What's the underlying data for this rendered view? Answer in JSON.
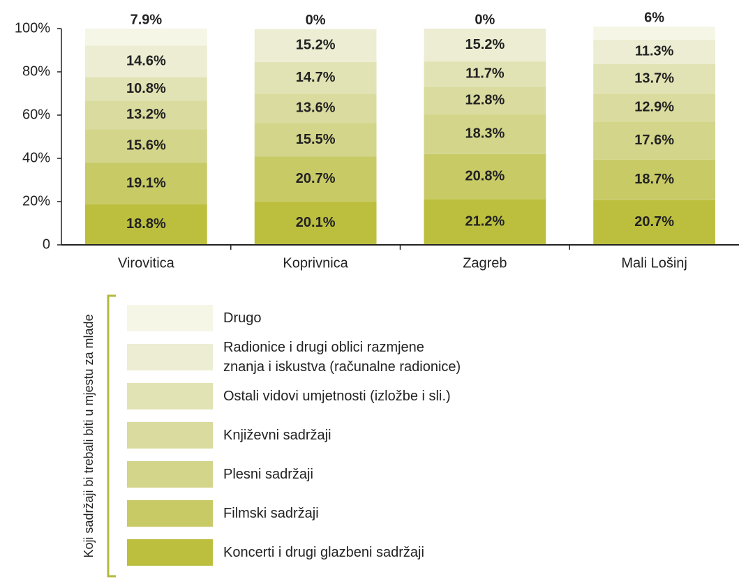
{
  "chart_data": {
    "type": "stacked_bar",
    "legend_title": "Koji sadržaji bi trebali biti u mjestu za mlade",
    "categories": [
      "Virovitica",
      "Koprivnica",
      "Zagreb",
      "Mali Lošinj"
    ],
    "ylim": [
      0,
      100
    ],
    "yticks": [
      0,
      {
        "value": 20,
        "label": "20%"
      },
      {
        "value": 40,
        "label": "40%"
      },
      {
        "value": 60,
        "label": "60%"
      },
      {
        "value": 80,
        "label": "80%"
      },
      {
        "value": 100,
        "label": "100%"
      }
    ],
    "series": [
      {
        "name": "Koncerti i drugi glazbeni sadržaji",
        "color": "#bcbf3e",
        "values": [
          18.8,
          20.1,
          21.2,
          20.7
        ],
        "value_labels": [
          "18.8%",
          "20.1%",
          "21.2%",
          "20.7%"
        ]
      },
      {
        "name": "Filmski sadržaji",
        "color": "#c8ca66",
        "values": [
          19.1,
          20.7,
          20.8,
          18.7
        ],
        "value_labels": [
          "19.1%",
          "20.7%",
          "20.8%",
          "18.7%"
        ]
      },
      {
        "name": "Plesni sadržaji",
        "color": "#d3d58a",
        "values": [
          15.6,
          15.5,
          18.3,
          17.6
        ],
        "value_labels": [
          "15.6%",
          "15.5%",
          "18.3%",
          "17.6%"
        ]
      },
      {
        "name": "Književni sadržaji",
        "color": "#dadb9e",
        "values": [
          13.2,
          13.6,
          12.8,
          12.9
        ],
        "value_labels": [
          "13.2%",
          "13.6%",
          "12.8%",
          "12.9%"
        ]
      },
      {
        "name": "Ostali vidovi umjetnosti (izložbe i sli.)",
        "color": "#e2e3b4",
        "values": [
          10.8,
          14.7,
          11.7,
          13.7
        ],
        "value_labels": [
          "10.8%",
          "14.7%",
          "11.7%",
          "13.7%"
        ]
      },
      {
        "name": "Radionice i drugi oblici razmjene\nznanja i iskustva (računalne radionice)",
        "color": "#ecedd2",
        "values": [
          14.6,
          15.2,
          15.2,
          11.3
        ],
        "value_labels": [
          "14.6%",
          "15.2%",
          "15.2%",
          "11.3%"
        ]
      },
      {
        "name": "Drugo",
        "color": "#f5f6e6",
        "values": [
          7.9,
          0,
          0,
          6
        ],
        "value_labels": [
          "7.9%",
          "0%",
          "0%",
          "6%"
        ]
      }
    ]
  }
}
